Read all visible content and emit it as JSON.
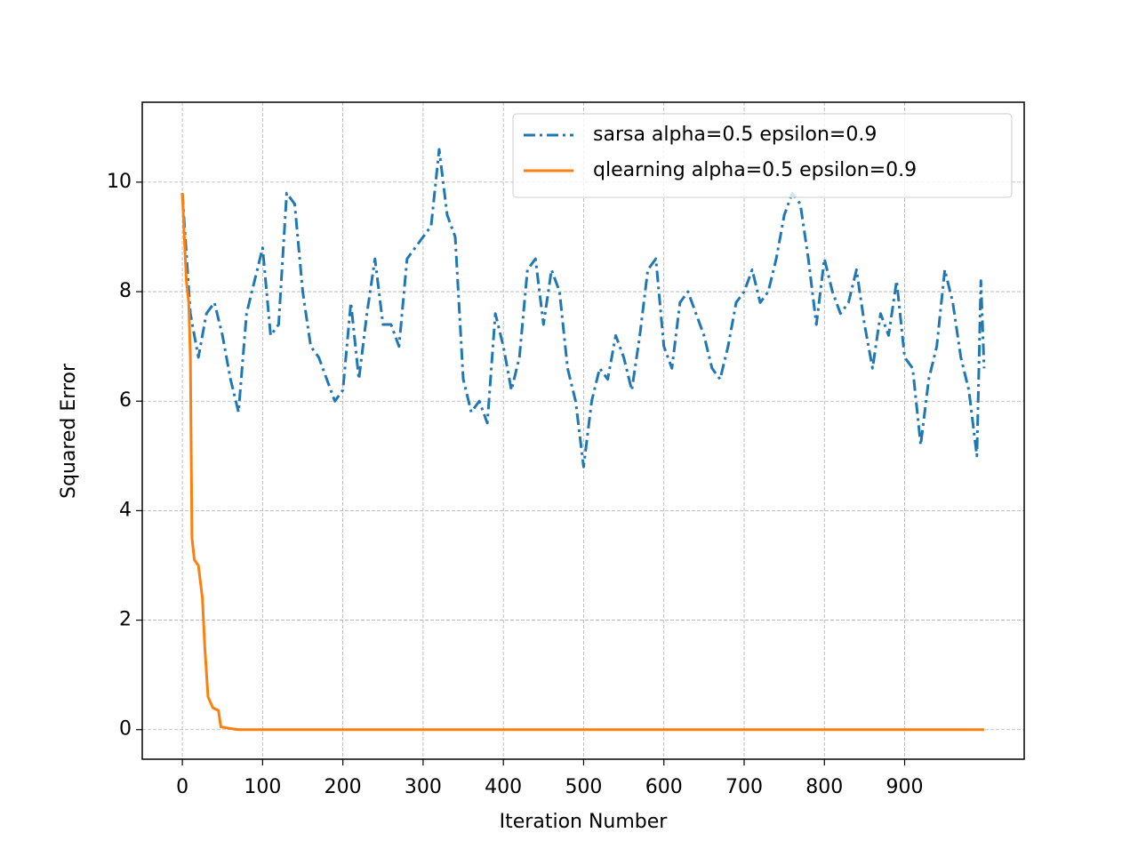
{
  "chart_data": {
    "type": "line",
    "xlabel": "Iteration Number",
    "ylabel": "Squared Error",
    "xlim": [
      -49.95,
      1048.95
    ],
    "ylim": [
      -0.54,
      11.46
    ],
    "xticks": [
      0,
      100,
      200,
      300,
      400,
      500,
      600,
      700,
      800,
      900
    ],
    "yticks": [
      0,
      2,
      4,
      6,
      8,
      10
    ],
    "grid": true,
    "legend": "upper right",
    "series": [
      {
        "name": "sarsa alpha=0.5 epsilon=0.9",
        "color": "#1f77b4",
        "linestyle": "dashdot",
        "x": [
          0,
          10,
          20,
          30,
          40,
          50,
          60,
          70,
          80,
          90,
          100,
          110,
          120,
          130,
          140,
          150,
          160,
          170,
          180,
          190,
          200,
          210,
          220,
          230,
          240,
          250,
          260,
          270,
          280,
          290,
          300,
          310,
          320,
          330,
          340,
          350,
          360,
          370,
          380,
          390,
          400,
          410,
          420,
          430,
          440,
          450,
          460,
          470,
          480,
          490,
          500,
          510,
          520,
          530,
          540,
          550,
          560,
          570,
          580,
          590,
          600,
          610,
          620,
          630,
          640,
          650,
          660,
          670,
          680,
          690,
          700,
          710,
          720,
          730,
          740,
          750,
          760,
          770,
          780,
          790,
          800,
          810,
          820,
          830,
          840,
          850,
          860,
          870,
          880,
          890,
          900,
          910,
          920,
          930,
          940,
          950,
          960,
          970,
          980,
          990,
          995,
          999
        ],
        "values": [
          9.8,
          7.6,
          6.8,
          7.6,
          7.8,
          7.2,
          6.4,
          5.8,
          7.6,
          8.2,
          8.8,
          7.2,
          7.4,
          9.8,
          9.6,
          8.0,
          7.0,
          6.8,
          6.4,
          6.0,
          6.2,
          7.8,
          6.4,
          7.6,
          8.6,
          7.4,
          7.4,
          7.0,
          8.6,
          8.8,
          9.0,
          9.2,
          10.6,
          9.4,
          9.0,
          6.4,
          5.8,
          6.0,
          5.6,
          7.6,
          7.0,
          6.2,
          6.8,
          8.4,
          8.6,
          7.4,
          8.4,
          8.0,
          6.6,
          6.0,
          4.8,
          6.0,
          6.6,
          6.4,
          7.2,
          6.8,
          6.2,
          7.2,
          8.4,
          8.6,
          7.0,
          6.6,
          7.8,
          8.0,
          7.6,
          7.2,
          6.6,
          6.4,
          7.0,
          7.8,
          8.0,
          8.4,
          7.8,
          8.0,
          8.6,
          9.4,
          9.8,
          9.6,
          8.6,
          7.4,
          8.6,
          8.0,
          7.6,
          7.8,
          8.4,
          7.4,
          6.6,
          7.6,
          7.2,
          8.2,
          6.8,
          6.6,
          5.2,
          6.4,
          7.0,
          8.4,
          7.8,
          6.8,
          6.2,
          5.0,
          8.2,
          6.6
        ]
      },
      {
        "name": "qlearning alpha=0.5 epsilon=0.9",
        "color": "#ff7f0e",
        "linestyle": "solid",
        "x": [
          0,
          5,
          8,
          10,
          12,
          15,
          20,
          25,
          28,
          32,
          38,
          45,
          48,
          60,
          70,
          999
        ],
        "values": [
          9.8,
          8.2,
          7.8,
          6.8,
          3.5,
          3.1,
          3.0,
          2.4,
          1.5,
          0.6,
          0.4,
          0.35,
          0.05,
          0.02,
          0,
          0
        ]
      }
    ]
  }
}
